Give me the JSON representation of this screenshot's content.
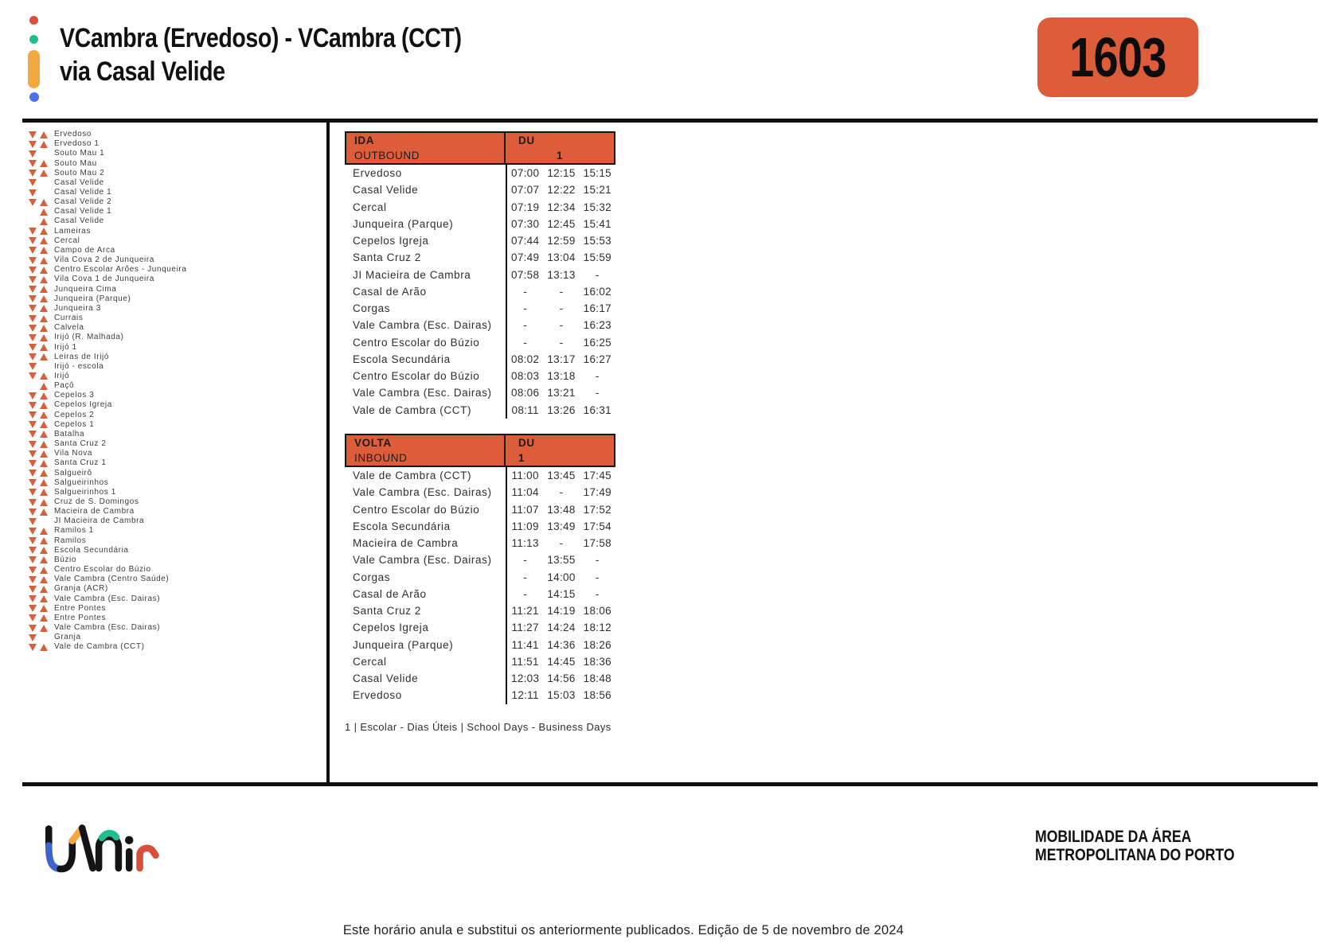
{
  "header": {
    "title_line1": "VCambra (Ervedoso) - VCambra (CCT)",
    "title_line2": "via Casal Velide",
    "route_number": "1603"
  },
  "colors": {
    "accent": "#dd5c3a",
    "triangle": "#d85f3d",
    "logo_blue": "#3e63c9",
    "logo_green": "#1fbe8c",
    "logo_orange": "#f3a93d",
    "logo_red": "#d6503c"
  },
  "stops": [
    {
      "name": "Ervedoso",
      "down": true,
      "up": true
    },
    {
      "name": "Ervedoso 1",
      "down": true,
      "up": true
    },
    {
      "name": "Souto Mau 1",
      "down": true,
      "up": false
    },
    {
      "name": "Souto Mau",
      "down": true,
      "up": true
    },
    {
      "name": "Souto Mau 2",
      "down": true,
      "up": true
    },
    {
      "name": "Casal Velide",
      "down": true,
      "up": false
    },
    {
      "name": "Casal Velide 1",
      "down": true,
      "up": false
    },
    {
      "name": "Casal Velide 2",
      "down": true,
      "up": true
    },
    {
      "name": "Casal Velide 1",
      "down": false,
      "up": true
    },
    {
      "name": "Casal Velide",
      "down": false,
      "up": true
    },
    {
      "name": "Lameiras",
      "down": true,
      "up": true
    },
    {
      "name": "Cercal",
      "down": true,
      "up": true
    },
    {
      "name": "Campo de Arca",
      "down": true,
      "up": true
    },
    {
      "name": "Vila Cova 2 de Junqueira",
      "down": true,
      "up": true
    },
    {
      "name": "Centro Escolar Arões - Junqueira",
      "down": true,
      "up": true
    },
    {
      "name": "Vila Cova 1 de Junqueira",
      "down": true,
      "up": true
    },
    {
      "name": "Junqueira Cima",
      "down": true,
      "up": true
    },
    {
      "name": "Junqueira (Parque)",
      "down": true,
      "up": true
    },
    {
      "name": "Junqueira 3",
      "down": true,
      "up": true
    },
    {
      "name": "Currais",
      "down": true,
      "up": true
    },
    {
      "name": "Calvela",
      "down": true,
      "up": true
    },
    {
      "name": "Irijó (R. Malhada)",
      "down": true,
      "up": true
    },
    {
      "name": "Irijó 1",
      "down": true,
      "up": true
    },
    {
      "name": "Leiras de Irijó",
      "down": true,
      "up": true
    },
    {
      "name": "Irijó - escola",
      "down": true,
      "up": false
    },
    {
      "name": "Irijó",
      "down": true,
      "up": true
    },
    {
      "name": "Paçô",
      "down": false,
      "up": true
    },
    {
      "name": "Cepelos 3",
      "down": true,
      "up": true
    },
    {
      "name": "Cepelos Igreja",
      "down": true,
      "up": true
    },
    {
      "name": "Cepelos 2",
      "down": true,
      "up": true
    },
    {
      "name": "Cepelos 1",
      "down": true,
      "up": true
    },
    {
      "name": "Batalha",
      "down": true,
      "up": true
    },
    {
      "name": "Santa Cruz 2",
      "down": true,
      "up": true
    },
    {
      "name": "Vila Nova",
      "down": true,
      "up": true
    },
    {
      "name": "Santa Cruz 1",
      "down": true,
      "up": true
    },
    {
      "name": "Salgueirô",
      "down": true,
      "up": true
    },
    {
      "name": "Salgueirinhos",
      "down": true,
      "up": true
    },
    {
      "name": "Salgueirinhos 1",
      "down": true,
      "up": true
    },
    {
      "name": "Cruz de S. Domingos",
      "down": true,
      "up": true
    },
    {
      "name": "Macieira de Cambra",
      "down": true,
      "up": true
    },
    {
      "name": "JI Macieira de Cambra",
      "down": true,
      "up": false
    },
    {
      "name": "Ramilos 1",
      "down": true,
      "up": true
    },
    {
      "name": "Ramilos",
      "down": true,
      "up": true
    },
    {
      "name": "Escola Secundária",
      "down": true,
      "up": true
    },
    {
      "name": "Búzio",
      "down": true,
      "up": true
    },
    {
      "name": "Centro Escolar do Búzio",
      "down": true,
      "up": true
    },
    {
      "name": "Vale Cambra (Centro Saúde)",
      "down": true,
      "up": true
    },
    {
      "name": "Granja (ACR)",
      "down": true,
      "up": true
    },
    {
      "name": "Vale Cambra (Esc. Dairas)",
      "down": true,
      "up": true
    },
    {
      "name": "Entre Pontes",
      "down": true,
      "up": true
    },
    {
      "name": "Entre Pontes",
      "down": true,
      "up": true
    },
    {
      "name": "Vale Cambra (Esc. Dairas)",
      "down": true,
      "up": true
    },
    {
      "name": "Granja",
      "down": true,
      "up": false
    },
    {
      "name": "Vale de Cambra (CCT)",
      "down": true,
      "up": true
    }
  ],
  "ida": {
    "direction_pt": "IDA",
    "direction_en": "OUTBOUND",
    "day_label": "DU",
    "note": "1",
    "rows": [
      {
        "stop": "Ervedoso",
        "times": [
          "07:00",
          "12:15",
          "15:15"
        ]
      },
      {
        "stop": "Casal Velide",
        "times": [
          "07:07",
          "12:22",
          "15:21"
        ]
      },
      {
        "stop": "Cercal",
        "times": [
          "07:19",
          "12:34",
          "15:32"
        ]
      },
      {
        "stop": "Junqueira (Parque)",
        "times": [
          "07:30",
          "12:45",
          "15:41"
        ]
      },
      {
        "stop": "Cepelos Igreja",
        "times": [
          "07:44",
          "12:59",
          "15:53"
        ]
      },
      {
        "stop": "Santa Cruz 2",
        "times": [
          "07:49",
          "13:04",
          "15:59"
        ]
      },
      {
        "stop": "JI Macieira de Cambra",
        "times": [
          "07:58",
          "13:13",
          "-"
        ]
      },
      {
        "stop": "Casal de Arão",
        "times": [
          "-",
          "-",
          "16:02"
        ]
      },
      {
        "stop": "Corgas",
        "times": [
          "-",
          "-",
          "16:17"
        ]
      },
      {
        "stop": "Vale Cambra (Esc. Dairas)",
        "times": [
          "-",
          "-",
          "16:23"
        ]
      },
      {
        "stop": "Centro Escolar do Búzio",
        "times": [
          "-",
          "-",
          "16:25"
        ]
      },
      {
        "stop": "Escola Secundária",
        "times": [
          "08:02",
          "13:17",
          "16:27"
        ]
      },
      {
        "stop": "Centro Escolar do Búzio",
        "times": [
          "08:03",
          "13:18",
          "-"
        ]
      },
      {
        "stop": "Vale Cambra (Esc. Dairas)",
        "times": [
          "08:06",
          "13:21",
          "-"
        ]
      },
      {
        "stop": "Vale de Cambra (CCT)",
        "times": [
          "08:11",
          "13:26",
          "16:31"
        ]
      }
    ]
  },
  "volta": {
    "direction_pt": "VOLTA",
    "direction_en": "INBOUND",
    "day_label": "DU",
    "note": "1",
    "rows": [
      {
        "stop": "Vale de Cambra (CCT)",
        "times": [
          "11:00",
          "13:45",
          "17:45"
        ]
      },
      {
        "stop": "Vale Cambra (Esc. Dairas)",
        "times": [
          "11:04",
          "-",
          "17:49"
        ]
      },
      {
        "stop": "Centro Escolar do Búzio",
        "times": [
          "11:07",
          "13:48",
          "17:52"
        ]
      },
      {
        "stop": "Escola Secundária",
        "times": [
          "11:09",
          "13:49",
          "17:54"
        ]
      },
      {
        "stop": "Macieira de Cambra",
        "times": [
          "11:13",
          "-",
          "17:58"
        ]
      },
      {
        "stop": "Vale Cambra (Esc. Dairas)",
        "times": [
          "-",
          "13:55",
          "-"
        ]
      },
      {
        "stop": "Corgas",
        "times": [
          "-",
          "14:00",
          "-"
        ]
      },
      {
        "stop": "Casal de Arão",
        "times": [
          "-",
          "14:15",
          "-"
        ]
      },
      {
        "stop": "Santa Cruz 2",
        "times": [
          "11:21",
          "14:19",
          "18:06"
        ]
      },
      {
        "stop": "Cepelos Igreja",
        "times": [
          "11:27",
          "14:24",
          "18:12"
        ]
      },
      {
        "stop": "Junqueira (Parque)",
        "times": [
          "11:41",
          "14:36",
          "18:26"
        ]
      },
      {
        "stop": "Cercal",
        "times": [
          "11:51",
          "14:45",
          "18:36"
        ]
      },
      {
        "stop": "Casal Velide",
        "times": [
          "12:03",
          "14:56",
          "18:48"
        ]
      },
      {
        "stop": "Ervedoso",
        "times": [
          "12:11",
          "15:03",
          "18:56"
        ]
      }
    ]
  },
  "footnote": "1 | Escolar - Dias Úteis | School Days - Business Days",
  "footer": {
    "brand_line1": "MOBILIDADE DA ÁREA",
    "brand_line2": "METROPOLITANA DO PORTO",
    "notice": "Este horário anula e substitui os anteriormente publicados. Edição de 5 de novembro de 2024"
  }
}
